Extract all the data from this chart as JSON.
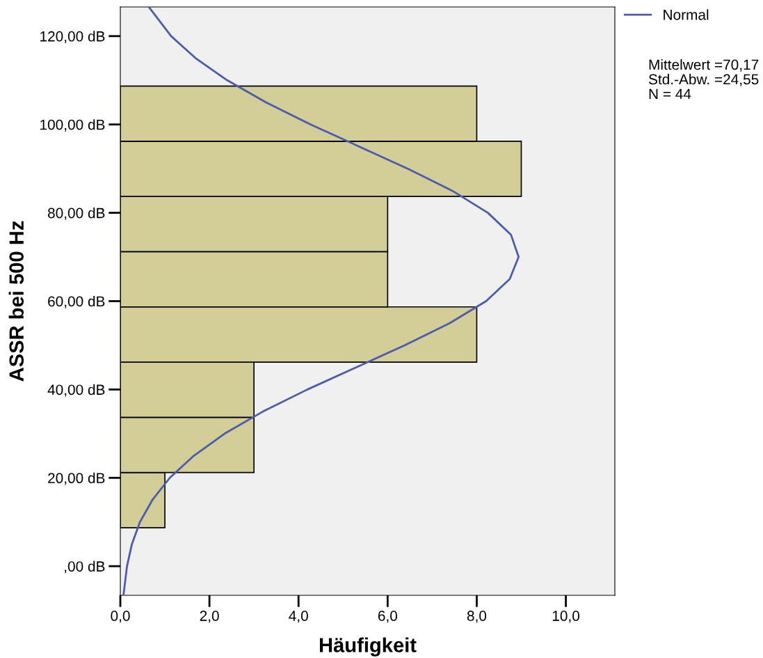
{
  "chart_data": {
    "type": "histogram",
    "orientation": "horizontal",
    "xlabel": "Häufigkeit",
    "ylabel": "ASSR bei 500 Hz",
    "bins": [
      8.7,
      21.2,
      33.7,
      46.2,
      58.7,
      71.2,
      83.7,
      96.2,
      108.7
    ],
    "values": [
      1,
      3,
      3,
      8,
      6,
      6,
      9,
      8
    ],
    "color": "#d3ce97",
    "series": [
      {
        "name": "Normal",
        "type": "line",
        "color": "#4a5cab",
        "x": [
          -6.6,
          0,
          5,
          10,
          15,
          20,
          25,
          30,
          35,
          40,
          45,
          50,
          55,
          60,
          65,
          70,
          75,
          80,
          85,
          90,
          95,
          100,
          105,
          110,
          115,
          120,
          126.6
        ],
        "values": [
          0.07,
          0.15,
          0.26,
          0.44,
          0.72,
          1.11,
          1.65,
          2.34,
          3.2,
          4.2,
          5.29,
          6.38,
          7.39,
          8.21,
          8.74,
          8.94,
          8.77,
          8.25,
          7.45,
          6.45,
          5.36,
          4.27,
          3.27,
          2.4,
          1.69,
          1.14,
          0.64
        ]
      }
    ],
    "xlim": [
      0,
      11.1
    ],
    "ylim": [
      -6.6,
      126.6
    ],
    "xticks": [
      {
        "value": 0,
        "label": "0,0"
      },
      {
        "value": 2,
        "label": "2,0"
      },
      {
        "value": 4,
        "label": "4,0"
      },
      {
        "value": 6,
        "label": "6,0"
      },
      {
        "value": 8,
        "label": "8,0"
      },
      {
        "value": 10,
        "label": "10,0"
      }
    ],
    "yticks": [
      {
        "value": 0,
        "label": ",00 dB"
      },
      {
        "value": 20,
        "label": "20,00 dB"
      },
      {
        "value": 40,
        "label": "40,00 dB"
      },
      {
        "value": 60,
        "label": "60,00 dB"
      },
      {
        "value": 80,
        "label": "80,00 dB"
      },
      {
        "value": 100,
        "label": "100,00 dB"
      },
      {
        "value": 120,
        "label": "120,00 dB"
      }
    ],
    "grid": false,
    "legend": "top right",
    "annotations": [
      "Mittelwert =70,17",
      "Std.-Abw. =24,55",
      "N = 44"
    ]
  }
}
